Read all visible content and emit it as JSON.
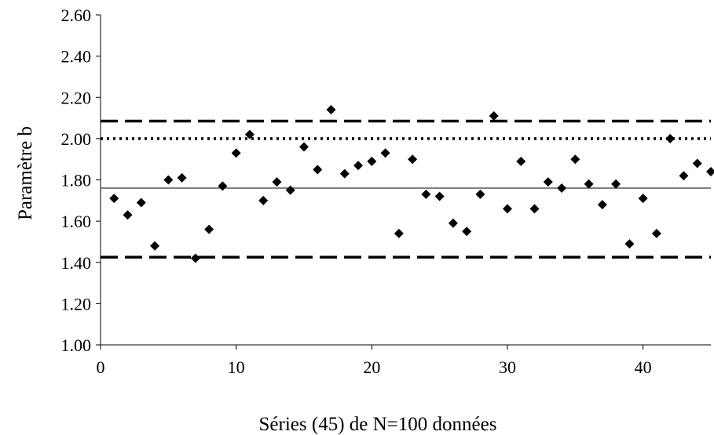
{
  "chart_data": {
    "type": "scatter",
    "title": "",
    "xlabel": "Séries (45) de N=100 données",
    "ylabel": "Paramètre b",
    "xlim": [
      0,
      45
    ],
    "ylim": [
      1.0,
      2.6
    ],
    "x_ticks": [
      0,
      10,
      20,
      30,
      40
    ],
    "x_tick_labels": [
      "0",
      "10",
      "20",
      "30",
      "40"
    ],
    "y_ticks": [
      1.0,
      1.2,
      1.4,
      1.6,
      1.8,
      2.0,
      2.2,
      2.4,
      2.6
    ],
    "y_tick_labels": [
      "1.00",
      "1.20",
      "1.40",
      "1.60",
      "1.80",
      "2.00",
      "2.20",
      "2.40",
      "2.60"
    ],
    "grid": false,
    "legend": "none",
    "marker_color": "#000000",
    "series": [
      {
        "marker": "diamond",
        "x": [
          1,
          2,
          3,
          4,
          5,
          6,
          7,
          8,
          9,
          10,
          11,
          12,
          13,
          14,
          15,
          16,
          17,
          18,
          19,
          20,
          21,
          22,
          23,
          24,
          25,
          26,
          27,
          28,
          29,
          30,
          31,
          32,
          33,
          34,
          35,
          36,
          37,
          38,
          39,
          40,
          41,
          42,
          43,
          44,
          45
        ],
        "y": [
          1.71,
          1.63,
          1.69,
          1.48,
          1.8,
          1.81,
          1.42,
          1.56,
          1.77,
          1.93,
          2.02,
          1.7,
          1.79,
          1.75,
          1.96,
          1.85,
          2.14,
          1.83,
          1.87,
          1.89,
          1.93,
          1.54,
          1.9,
          1.73,
          1.72,
          1.59,
          1.55,
          1.73,
          2.11,
          1.66,
          1.89,
          1.66,
          1.79,
          1.76,
          1.9,
          1.78,
          1.68,
          1.78,
          1.49,
          1.71,
          1.54,
          2.0,
          1.82,
          1.88,
          1.84
        ]
      }
    ],
    "reference_lines": [
      {
        "style": "solid",
        "y": 1.76
      },
      {
        "style": "dotted",
        "y": 2.0
      },
      {
        "style": "dashed",
        "y": 2.085
      },
      {
        "style": "dashed",
        "y": 1.425
      }
    ]
  }
}
